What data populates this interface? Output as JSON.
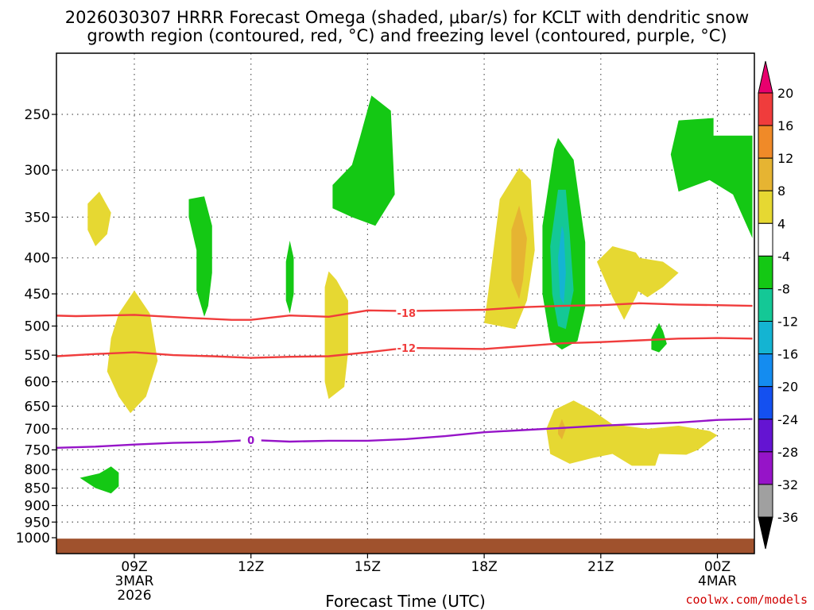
{
  "chart_data": {
    "type": "heatmap",
    "title_line1": "2026030307 HRRR Forecast Omega (shaded, μbar/s) for KCLT with dendritic snow",
    "title_line2": "growth region (contoured, red, °C) and freezing level (contoured, purple, °C)",
    "xlabel": "Forecast Time (UTC)",
    "x_range_hours": [
      6.2,
      24.2
    ],
    "y_range_hpa": [
      190,
      1025
    ],
    "x_ticks": [
      {
        "hour": 9,
        "label": "09Z",
        "sub1": "3MAR",
        "sub2": "2026"
      },
      {
        "hour": 12,
        "label": "12Z",
        "sub1": "",
        "sub2": ""
      },
      {
        "hour": 15,
        "label": "15Z",
        "sub1": "",
        "sub2": ""
      },
      {
        "hour": 18,
        "label": "18Z",
        "sub1": "",
        "sub2": ""
      },
      {
        "hour": 21,
        "label": "21Z",
        "sub1": "",
        "sub2": ""
      },
      {
        "hour": 24,
        "label": "00Z",
        "sub1": "4MAR",
        "sub2": ""
      }
    ],
    "y_ticks": [
      {
        "p": 250,
        "label": "250",
        "grid": true
      },
      {
        "p": 300,
        "label": "300",
        "grid": true
      },
      {
        "p": 350,
        "label": "350",
        "grid": true
      },
      {
        "p": 400,
        "label": "400",
        "grid": true
      },
      {
        "p": 450,
        "label": "450",
        "grid": true
      },
      {
        "p": 500,
        "label": "500",
        "grid": true
      },
      {
        "p": 550,
        "label": "550",
        "grid": true
      },
      {
        "p": 600,
        "label": "600",
        "grid": true
      },
      {
        "p": 650,
        "label": "650",
        "grid": true
      },
      {
        "p": 700,
        "label": "700",
        "grid": true
      },
      {
        "p": 750,
        "label": "750",
        "grid": true
      },
      {
        "p": 800,
        "label": "800",
        "grid": true
      },
      {
        "p": 850,
        "label": "850",
        "grid": true
      },
      {
        "p": 900,
        "label": "900",
        "grid": true
      },
      {
        "p": 950,
        "label": "950",
        "grid": true
      },
      {
        "p": 1000,
        "label": "1000",
        "grid": false
      }
    ],
    "colorbar": {
      "levels": [
        "20",
        "16",
        "12",
        "8",
        "4",
        "-4",
        "-8",
        "-12",
        "-16",
        "-20",
        "-24",
        "-28",
        "-32",
        "-36"
      ],
      "over_color": "#e8006e",
      "under_color": "#000000",
      "bins_top_to_bottom": [
        "#f03c3c",
        "#f08a28",
        "#e6b432",
        "#e6d832",
        "#ffffff",
        "#14c814",
        "#14c896",
        "#14b4d2",
        "#148cf0",
        "#1450f0",
        "#6414d2",
        "#9614c8",
        "#a0a0a0"
      ]
    },
    "ground": {
      "p_top": 1003,
      "color": "#a0522d"
    },
    "omega_regions": [
      {
        "value": "4",
        "color": "#e6d832",
        "points": [
          [
            7.8,
            335
          ],
          [
            8.1,
            322
          ],
          [
            8.4,
            345
          ],
          [
            8.3,
            370
          ],
          [
            8.0,
            385
          ],
          [
            7.8,
            365
          ]
        ]
      },
      {
        "value": "4",
        "color": "#e6d832",
        "points": [
          [
            8.4,
            520
          ],
          [
            8.6,
            480
          ],
          [
            9.0,
            445
          ],
          [
            9.4,
            480
          ],
          [
            9.6,
            560
          ],
          [
            9.3,
            630
          ],
          [
            8.9,
            665
          ],
          [
            8.6,
            630
          ],
          [
            8.3,
            580
          ]
        ]
      },
      {
        "value": "4",
        "color": "#e6d832",
        "points": [
          [
            13.9,
            440
          ],
          [
            14.0,
            418
          ],
          [
            14.2,
            430
          ],
          [
            14.5,
            460
          ],
          [
            14.5,
            545
          ],
          [
            14.4,
            610
          ],
          [
            14.0,
            635
          ],
          [
            13.9,
            600
          ]
        ]
      },
      {
        "value": "4",
        "color": "#e6d832",
        "points": [
          [
            18.0,
            495
          ],
          [
            18.1,
            450
          ],
          [
            18.4,
            330
          ],
          [
            18.9,
            298
          ],
          [
            19.2,
            310
          ],
          [
            19.3,
            390
          ],
          [
            19.1,
            460
          ],
          [
            18.8,
            505
          ],
          [
            18.4,
            500
          ]
        ]
      },
      {
        "value": "4",
        "color": "#e6d832",
        "points": [
          [
            21.3,
            422
          ],
          [
            22.0,
            400
          ],
          [
            22.6,
            405
          ],
          [
            23.0,
            420
          ],
          [
            22.6,
            440
          ],
          [
            22.2,
            455
          ]
        ]
      },
      {
        "value": "4",
        "color": "#e6d832",
        "points": [
          [
            20.9,
            405
          ],
          [
            21.3,
            385
          ],
          [
            21.9,
            393
          ],
          [
            22.2,
            415
          ],
          [
            21.9,
            455
          ],
          [
            21.6,
            490
          ],
          [
            21.3,
            455
          ]
        ]
      },
      {
        "value": "4",
        "color": "#e6d832",
        "points": [
          [
            19.6,
            700
          ],
          [
            19.8,
            658
          ],
          [
            20.3,
            638
          ],
          [
            20.8,
            660
          ],
          [
            21.3,
            690
          ],
          [
            22.2,
            700
          ],
          [
            23.0,
            693
          ],
          [
            23.8,
            705
          ],
          [
            24.0,
            715
          ],
          [
            23.5,
            750
          ],
          [
            23.2,
            762
          ],
          [
            22.5,
            760
          ],
          [
            22.4,
            790
          ],
          [
            21.8,
            790
          ],
          [
            21.3,
            760
          ],
          [
            20.8,
            770
          ],
          [
            20.2,
            785
          ],
          [
            19.7,
            760
          ]
        ]
      },
      {
        "value": "8",
        "color": "#e6b432",
        "points": [
          [
            18.7,
            365
          ],
          [
            18.9,
            337
          ],
          [
            19.1,
            375
          ],
          [
            19.0,
            430
          ],
          [
            18.9,
            458
          ],
          [
            18.7,
            430
          ]
        ]
      },
      {
        "value": "8",
        "color": "#e6b432",
        "points": [
          [
            19.9,
            700
          ],
          [
            20.0,
            678
          ],
          [
            20.1,
            700
          ],
          [
            20.0,
            725
          ],
          [
            19.9,
            712
          ]
        ]
      },
      {
        "value": "-4",
        "color": "#14c814",
        "points": [
          [
            14.1,
            315
          ],
          [
            14.6,
            295
          ],
          [
            14.8,
            270
          ],
          [
            15.1,
            235
          ],
          [
            15.6,
            247
          ],
          [
            15.7,
            325
          ],
          [
            15.2,
            360
          ],
          [
            14.6,
            350
          ],
          [
            14.1,
            340
          ]
        ]
      },
      {
        "value": "-4",
        "color": "#14c814",
        "points": [
          [
            10.4,
            330
          ],
          [
            10.8,
            327
          ],
          [
            11.0,
            360
          ],
          [
            11.0,
            420
          ],
          [
            10.9,
            468
          ],
          [
            10.8,
            485
          ],
          [
            10.6,
            445
          ],
          [
            10.6,
            390
          ],
          [
            10.4,
            350
          ]
        ]
      },
      {
        "value": "-4",
        "color": "#14c814",
        "points": [
          [
            12.9,
            405
          ],
          [
            13.0,
            378
          ],
          [
            13.1,
            400
          ],
          [
            13.1,
            450
          ],
          [
            13.0,
            480
          ],
          [
            12.9,
            460
          ]
        ]
      },
      {
        "value": "-4",
        "color": "#14c814",
        "points": [
          [
            19.5,
            360
          ],
          [
            19.8,
            280
          ],
          [
            19.9,
            270
          ],
          [
            20.3,
            290
          ],
          [
            20.6,
            380
          ],
          [
            20.6,
            470
          ],
          [
            20.4,
            525
          ],
          [
            20.0,
            540
          ],
          [
            19.7,
            525
          ],
          [
            19.5,
            450
          ]
        ]
      },
      {
        "value": "-4",
        "color": "#14c814",
        "points": [
          [
            22.3,
            520
          ],
          [
            22.5,
            495
          ],
          [
            22.6,
            508
          ],
          [
            22.7,
            530
          ],
          [
            22.5,
            545
          ],
          [
            22.3,
            540
          ]
        ]
      },
      {
        "value": "-4",
        "color": "#14c814",
        "points": [
          [
            22.8,
            285
          ],
          [
            23.0,
            255
          ],
          [
            23.9,
            253
          ],
          [
            23.9,
            268
          ],
          [
            24.9,
            268
          ],
          [
            24.9,
            375
          ],
          [
            24.4,
            325
          ],
          [
            23.8,
            310
          ],
          [
            23.0,
            322
          ]
        ]
      },
      {
        "value": "-4",
        "color": "#14c814",
        "points": [
          [
            7.6,
            822
          ],
          [
            8.1,
            810
          ],
          [
            8.4,
            792
          ],
          [
            8.6,
            808
          ],
          [
            8.6,
            845
          ],
          [
            8.4,
            865
          ],
          [
            8.0,
            850
          ]
        ]
      },
      {
        "value": "-8",
        "color": "#14c896",
        "points": [
          [
            19.7,
            385
          ],
          [
            19.9,
            320
          ],
          [
            20.1,
            320
          ],
          [
            20.2,
            370
          ],
          [
            20.3,
            445
          ],
          [
            20.1,
            505
          ],
          [
            19.9,
            500
          ],
          [
            19.75,
            450
          ]
        ]
      },
      {
        "value": "-12",
        "color": "#14b4d2",
        "points": [
          [
            19.9,
            400
          ],
          [
            20.0,
            360
          ],
          [
            20.05,
            368
          ],
          [
            20.1,
            420
          ],
          [
            20.05,
            465
          ],
          [
            19.95,
            455
          ]
        ]
      }
    ],
    "contours": [
      {
        "label": "-18",
        "color": "#f03c3c",
        "label_at": [
          16.0,
          479
        ],
        "points": [
          [
            6.2,
            482
          ],
          [
            7.5,
            484
          ],
          [
            9.0,
            482
          ],
          [
            10.5,
            487
          ],
          [
            11.5,
            490
          ],
          [
            12.0,
            490
          ],
          [
            13.0,
            483
          ],
          [
            14.0,
            485
          ],
          [
            15.0,
            475
          ],
          [
            16.0,
            476
          ],
          [
            17.0,
            475
          ],
          [
            18.0,
            474
          ],
          [
            19.0,
            470
          ],
          [
            20.0,
            468
          ],
          [
            21.0,
            467
          ],
          [
            22.0,
            464
          ],
          [
            23.0,
            466
          ],
          [
            24.0,
            467
          ],
          [
            24.9,
            468
          ]
        ]
      },
      {
        "label": "-12",
        "color": "#f03c3c",
        "label_at": [
          16.0,
          537
        ],
        "points": [
          [
            6.2,
            545
          ],
          [
            7.0,
            552
          ],
          [
            8.0,
            548
          ],
          [
            9.0,
            545
          ],
          [
            10.0,
            550
          ],
          [
            11.0,
            552
          ],
          [
            12.0,
            555
          ],
          [
            13.0,
            553
          ],
          [
            14.0,
            552
          ],
          [
            15.0,
            545
          ],
          [
            16.0,
            537
          ],
          [
            17.0,
            538
          ],
          [
            18.0,
            539
          ],
          [
            19.0,
            534
          ],
          [
            20.0,
            529
          ],
          [
            21.0,
            527
          ],
          [
            22.0,
            524
          ],
          [
            23.0,
            521
          ],
          [
            24.0,
            520
          ],
          [
            24.9,
            521
          ]
        ]
      },
      {
        "label": "0",
        "color": "#9614c8",
        "label_at": [
          12.0,
          726
        ],
        "points": [
          [
            6.2,
            745
          ],
          [
            7.0,
            745
          ],
          [
            8.0,
            742
          ],
          [
            9.0,
            737
          ],
          [
            10.0,
            733
          ],
          [
            11.0,
            731
          ],
          [
            12.0,
            726
          ],
          [
            13.0,
            730
          ],
          [
            14.0,
            728
          ],
          [
            15.0,
            728
          ],
          [
            16.0,
            724
          ],
          [
            17.0,
            717
          ],
          [
            18.0,
            708
          ],
          [
            19.0,
            703
          ],
          [
            20.0,
            698
          ],
          [
            21.0,
            693
          ],
          [
            22.0,
            689
          ],
          [
            23.0,
            686
          ],
          [
            24.0,
            680
          ],
          [
            24.9,
            678
          ]
        ]
      }
    ]
  },
  "credit": "coolwx.com/models"
}
